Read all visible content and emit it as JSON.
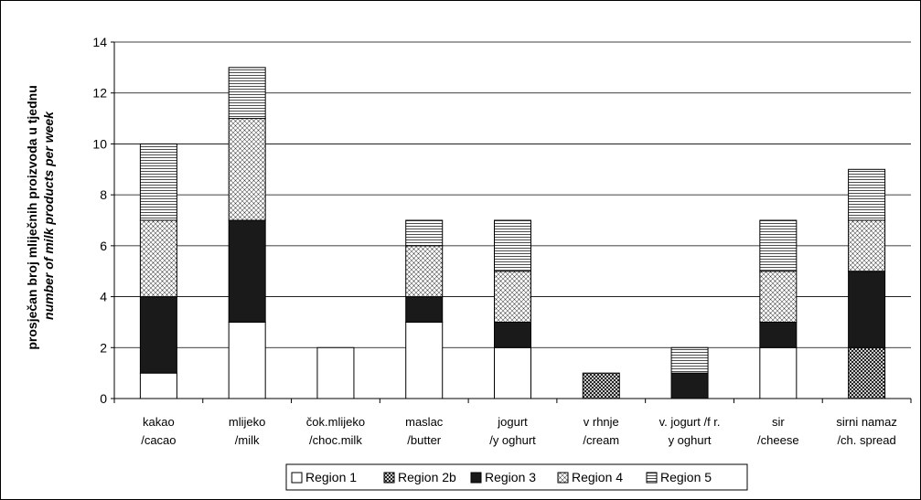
{
  "chart_data": {
    "type": "bar",
    "stacked": true,
    "categories": [
      [
        "kakao",
        "/cacao"
      ],
      [
        "mlijeko",
        "/milk"
      ],
      [
        "čok.mlijeko",
        "/choc.milk"
      ],
      [
        "maslac",
        "/butter"
      ],
      [
        "jogurt",
        "/y oghurt"
      ],
      [
        "v rhnje",
        "/cream"
      ],
      [
        "v. jogurt /f r.",
        "y oghurt"
      ],
      [
        "sir",
        "/cheese"
      ],
      [
        "sirni namaz",
        "/ch. spread"
      ]
    ],
    "series": [
      {
        "name": "Region 1",
        "pattern": "white",
        "values": [
          1,
          3,
          2,
          3,
          2,
          0,
          0,
          2,
          0
        ]
      },
      {
        "name": "Region 2b",
        "pattern": "dense",
        "values": [
          0,
          0,
          0,
          0,
          0,
          1,
          0,
          0,
          2
        ]
      },
      {
        "name": "Region 3",
        "pattern": "black",
        "values": [
          3,
          4,
          0,
          1,
          1,
          0,
          1,
          1,
          3
        ]
      },
      {
        "name": "Region 4",
        "pattern": "dots",
        "values": [
          3,
          4,
          0,
          2,
          2,
          0,
          0,
          2,
          2
        ]
      },
      {
        "name": "Region 5",
        "pattern": "hlines",
        "values": [
          3,
          2,
          0,
          1,
          2,
          0,
          1,
          2,
          2
        ]
      }
    ],
    "ylabel_line1": "prosječan broj mliječnih proizvoda u tjednu",
    "ylabel_line2": "number of milk products per week",
    "ylim": [
      0,
      14
    ],
    "yticks": [
      0,
      2,
      4,
      6,
      8,
      10,
      12,
      14
    ],
    "grid": true,
    "legend_position": "bottom"
  }
}
